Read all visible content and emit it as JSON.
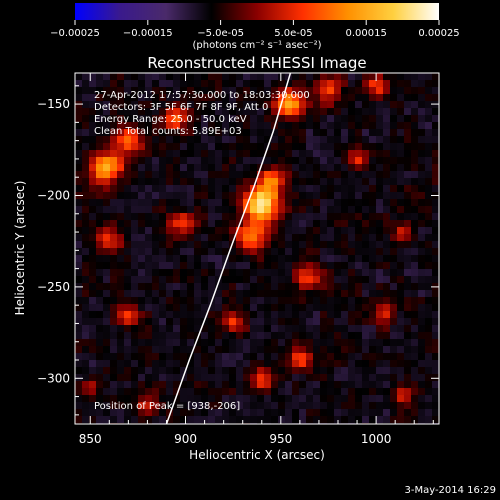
{
  "chart_data": {
    "type": "heatmap",
    "title": "Reconstructed RHESSI Image",
    "xlabel": "Heliocentric X (arcsec)",
    "ylabel": "Heliocentric Y (arcsec)",
    "xlim": [
      842,
      1033
    ],
    "ylim": [
      -325,
      -133
    ],
    "xticks": [
      850,
      900,
      950,
      1000
    ],
    "xtick_labels": [
      "850",
      "900",
      "950",
      "1000"
    ],
    "yticks": [
      -150,
      -200,
      -250,
      -300
    ],
    "ytick_labels": [
      "-150",
      "-200",
      "-250",
      "-300"
    ],
    "colorbar": {
      "range": [
        -0.00025,
        0.00025
      ],
      "ticks": [
        -0.00025,
        -0.00015,
        -5e-05,
        5e-05,
        0.00015,
        0.00025
      ],
      "tick_labels": [
        "-0.00025",
        "-0.00015",
        "-5.0e-05",
        "5.0e-05",
        "0.00015",
        "0.00025"
      ],
      "units": "(photons cm⁻² s⁻¹ asec⁻²)",
      "colors": [
        "#0000ff",
        "#3a1a8c",
        "#4a2a6a",
        "#000000",
        "#8a0000",
        "#ff3000",
        "#ff9000",
        "#ffd040",
        "#ffffff"
      ]
    },
    "annotations": [
      "27-Apr-2012 17:57:30.000 to 18:03:30.000",
      "Detectors: 3F 5F 6F 7F 8F 9F, Att 0",
      "Energy Range: 25.0 - 50.0 keV",
      "Clean    Total counts: 5.89E+03"
    ],
    "peak": {
      "label": "Position of Peak = [938,-206]",
      "x": 938,
      "y": -206
    },
    "limb_curve": [
      [
        890,
        -325
      ],
      [
        902,
        -290
      ],
      [
        913,
        -260
      ],
      [
        925,
        -225
      ],
      [
        936,
        -195
      ],
      [
        946,
        -165
      ],
      [
        955,
        -133
      ]
    ],
    "sources": [
      {
        "x": 940,
        "y": -205,
        "r": 9,
        "amp": 1.0
      },
      {
        "x": 935,
        "y": -222,
        "r": 9,
        "amp": 0.55
      },
      {
        "x": 945,
        "y": -192,
        "r": 7,
        "amp": 0.55
      },
      {
        "x": 858,
        "y": -185,
        "r": 9,
        "amp": 0.75
      },
      {
        "x": 870,
        "y": -170,
        "r": 8,
        "amp": 0.55
      },
      {
        "x": 895,
        "y": -158,
        "r": 7,
        "amp": 0.5
      },
      {
        "x": 955,
        "y": -150,
        "r": 8,
        "amp": 0.7
      },
      {
        "x": 975,
        "y": -142,
        "r": 7,
        "amp": 0.5
      },
      {
        "x": 1000,
        "y": -140,
        "r": 6,
        "amp": 0.45
      },
      {
        "x": 990,
        "y": -180,
        "r": 5,
        "amp": 0.4
      },
      {
        "x": 860,
        "y": -225,
        "r": 7,
        "amp": 0.45
      },
      {
        "x": 898,
        "y": -215,
        "r": 7,
        "amp": 0.4
      },
      {
        "x": 965,
        "y": -245,
        "r": 7,
        "amp": 0.45
      },
      {
        "x": 1015,
        "y": -220,
        "r": 5,
        "amp": 0.4
      },
      {
        "x": 870,
        "y": -265,
        "r": 6,
        "amp": 0.4
      },
      {
        "x": 925,
        "y": -270,
        "r": 6,
        "amp": 0.4
      },
      {
        "x": 940,
        "y": -300,
        "r": 6,
        "amp": 0.45
      },
      {
        "x": 960,
        "y": -290,
        "r": 6,
        "amp": 0.45
      },
      {
        "x": 1005,
        "y": -265,
        "r": 6,
        "amp": 0.4
      },
      {
        "x": 1015,
        "y": -310,
        "r": 5,
        "amp": 0.4
      },
      {
        "x": 880,
        "y": -315,
        "r": 6,
        "amp": 0.35
      },
      {
        "x": 850,
        "y": -305,
        "r": 5,
        "amp": 0.3
      }
    ]
  },
  "footer": {
    "date": "3-May-2014 16:29"
  }
}
